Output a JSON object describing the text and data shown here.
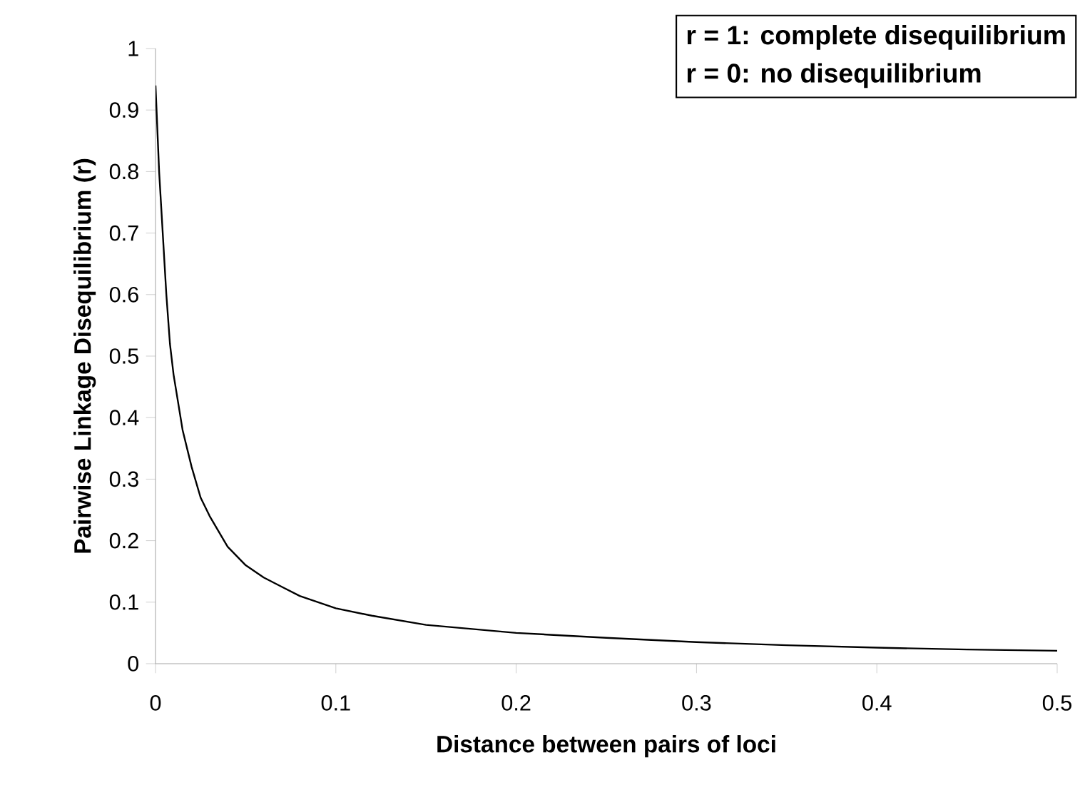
{
  "chart_data": {
    "type": "line",
    "xlabel": "Distance between pairs of loci",
    "ylabel": "Pairwise Linkage Disequilibrium (r)",
    "annotations": [
      "r = 1: complete disequilibrium",
      "r = 0: no disequilibrium"
    ],
    "series": [
      {
        "color": "#000000",
        "x": [
          0,
          0.002,
          0.004,
          0.006,
          0.008,
          0.01,
          0.015,
          0.02,
          0.025,
          0.03,
          0.04,
          0.05,
          0.06,
          0.07,
          0.08,
          0.1,
          0.12,
          0.15,
          0.2,
          0.25,
          0.3,
          0.35,
          0.4,
          0.45,
          0.5
        ],
        "values": [
          0.94,
          0.8,
          0.7,
          0.6,
          0.52,
          0.47,
          0.38,
          0.32,
          0.27,
          0.24,
          0.19,
          0.16,
          0.14,
          0.125,
          0.11,
          0.09,
          0.078,
          0.063,
          0.05,
          0.042,
          0.035,
          0.03,
          0.026,
          0.023,
          0.021
        ]
      }
    ],
    "xlim": [
      0,
      0.5
    ],
    "ylim": [
      0,
      1
    ],
    "xticks": [
      0,
      0.1,
      0.2,
      0.3,
      0.4,
      0.5
    ],
    "yticks": [
      0,
      0.1,
      0.2,
      0.3,
      0.4,
      0.5,
      0.6,
      0.7,
      0.8,
      0.9,
      1
    ],
    "grid": false,
    "marker": "none",
    "line_style": "solid"
  }
}
